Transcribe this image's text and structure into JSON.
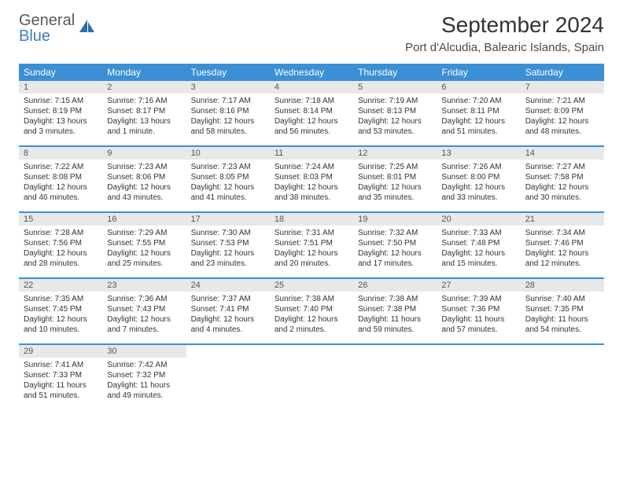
{
  "brand": {
    "line1": "General",
    "line2": "Blue"
  },
  "title": "September 2024",
  "location": "Port d'Alcudia, Balearic Islands, Spain",
  "colors": {
    "header_bg": "#3b8fd4",
    "header_text": "#ffffff",
    "daynum_bg": "#e8e8e8",
    "rule": "#3b8fd4",
    "brand_gray": "#565a5c",
    "brand_blue": "#3b7fc4"
  },
  "weekdays": [
    "Sunday",
    "Monday",
    "Tuesday",
    "Wednesday",
    "Thursday",
    "Friday",
    "Saturday"
  ],
  "weeks": [
    [
      {
        "n": "1",
        "sr": "7:15 AM",
        "ss": "8:19 PM",
        "dl": "13 hours and 3 minutes."
      },
      {
        "n": "2",
        "sr": "7:16 AM",
        "ss": "8:17 PM",
        "dl": "13 hours and 1 minute."
      },
      {
        "n": "3",
        "sr": "7:17 AM",
        "ss": "8:16 PM",
        "dl": "12 hours and 58 minutes."
      },
      {
        "n": "4",
        "sr": "7:18 AM",
        "ss": "8:14 PM",
        "dl": "12 hours and 56 minutes."
      },
      {
        "n": "5",
        "sr": "7:19 AM",
        "ss": "8:13 PM",
        "dl": "12 hours and 53 minutes."
      },
      {
        "n": "6",
        "sr": "7:20 AM",
        "ss": "8:11 PM",
        "dl": "12 hours and 51 minutes."
      },
      {
        "n": "7",
        "sr": "7:21 AM",
        "ss": "8:09 PM",
        "dl": "12 hours and 48 minutes."
      }
    ],
    [
      {
        "n": "8",
        "sr": "7:22 AM",
        "ss": "8:08 PM",
        "dl": "12 hours and 46 minutes."
      },
      {
        "n": "9",
        "sr": "7:23 AM",
        "ss": "8:06 PM",
        "dl": "12 hours and 43 minutes."
      },
      {
        "n": "10",
        "sr": "7:23 AM",
        "ss": "8:05 PM",
        "dl": "12 hours and 41 minutes."
      },
      {
        "n": "11",
        "sr": "7:24 AM",
        "ss": "8:03 PM",
        "dl": "12 hours and 38 minutes."
      },
      {
        "n": "12",
        "sr": "7:25 AM",
        "ss": "8:01 PM",
        "dl": "12 hours and 35 minutes."
      },
      {
        "n": "13",
        "sr": "7:26 AM",
        "ss": "8:00 PM",
        "dl": "12 hours and 33 minutes."
      },
      {
        "n": "14",
        "sr": "7:27 AM",
        "ss": "7:58 PM",
        "dl": "12 hours and 30 minutes."
      }
    ],
    [
      {
        "n": "15",
        "sr": "7:28 AM",
        "ss": "7:56 PM",
        "dl": "12 hours and 28 minutes."
      },
      {
        "n": "16",
        "sr": "7:29 AM",
        "ss": "7:55 PM",
        "dl": "12 hours and 25 minutes."
      },
      {
        "n": "17",
        "sr": "7:30 AM",
        "ss": "7:53 PM",
        "dl": "12 hours and 23 minutes."
      },
      {
        "n": "18",
        "sr": "7:31 AM",
        "ss": "7:51 PM",
        "dl": "12 hours and 20 minutes."
      },
      {
        "n": "19",
        "sr": "7:32 AM",
        "ss": "7:50 PM",
        "dl": "12 hours and 17 minutes."
      },
      {
        "n": "20",
        "sr": "7:33 AM",
        "ss": "7:48 PM",
        "dl": "12 hours and 15 minutes."
      },
      {
        "n": "21",
        "sr": "7:34 AM",
        "ss": "7:46 PM",
        "dl": "12 hours and 12 minutes."
      }
    ],
    [
      {
        "n": "22",
        "sr": "7:35 AM",
        "ss": "7:45 PM",
        "dl": "12 hours and 10 minutes."
      },
      {
        "n": "23",
        "sr": "7:36 AM",
        "ss": "7:43 PM",
        "dl": "12 hours and 7 minutes."
      },
      {
        "n": "24",
        "sr": "7:37 AM",
        "ss": "7:41 PM",
        "dl": "12 hours and 4 minutes."
      },
      {
        "n": "25",
        "sr": "7:38 AM",
        "ss": "7:40 PM",
        "dl": "12 hours and 2 minutes."
      },
      {
        "n": "26",
        "sr": "7:38 AM",
        "ss": "7:38 PM",
        "dl": "11 hours and 59 minutes."
      },
      {
        "n": "27",
        "sr": "7:39 AM",
        "ss": "7:36 PM",
        "dl": "11 hours and 57 minutes."
      },
      {
        "n": "28",
        "sr": "7:40 AM",
        "ss": "7:35 PM",
        "dl": "11 hours and 54 minutes."
      }
    ],
    [
      {
        "n": "29",
        "sr": "7:41 AM",
        "ss": "7:33 PM",
        "dl": "11 hours and 51 minutes."
      },
      {
        "n": "30",
        "sr": "7:42 AM",
        "ss": "7:32 PM",
        "dl": "11 hours and 49 minutes."
      },
      null,
      null,
      null,
      null,
      null
    ]
  ],
  "labels": {
    "sunrise": "Sunrise: ",
    "sunset": "Sunset: ",
    "daylight": "Daylight: "
  }
}
